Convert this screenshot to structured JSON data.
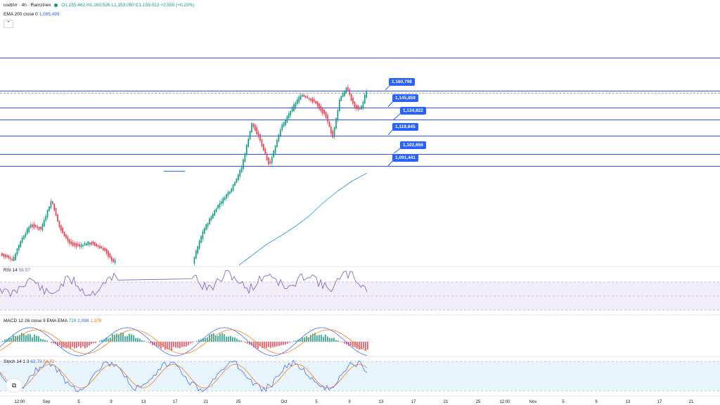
{
  "header": {
    "symbol": "usdt/irr · 4h · Ramzinex",
    "open": "O1,155,462",
    "high": "H1,160,526",
    "low": "L1,153,050",
    "close": "C1,159,013",
    "change": "+2,550 (+0.22%)",
    "ema_label": "EMA 200 close 0",
    "ema_value": "1,085,499",
    "collapse_icon": "chevron-up-icon"
  },
  "price_levels": [
    "1,160,798",
    "1,145,859",
    "1,134,822",
    "1,119,845",
    "1,102,656",
    "1,091,441"
  ],
  "rsi": {
    "label": "RSI 14",
    "value": "58.57"
  },
  "macd": {
    "label": "MACD 12 26 close 9 EMA EMA",
    "v1": "719",
    "v2": "2,098",
    "v3": "1,379"
  },
  "stoch": {
    "label": "Stoch 14 1 3",
    "v1": "62.73",
    "v2": "54.52"
  },
  "x_ticks": [
    "12:00",
    "Sep",
    "5",
    "9",
    "13",
    "17",
    "21",
    "25",
    "Oct",
    "5",
    "9",
    "13",
    "17",
    "21",
    "25",
    "12:00",
    "Nov",
    "5",
    "9",
    "13",
    "17",
    "21"
  ],
  "colors": {
    "up": "#089981",
    "down": "#f23645",
    "level": "#2f54eb",
    "ema": "#2962ff",
    "rsi_band": "#7e57c2",
    "stoch_band": "#2196f3"
  }
}
